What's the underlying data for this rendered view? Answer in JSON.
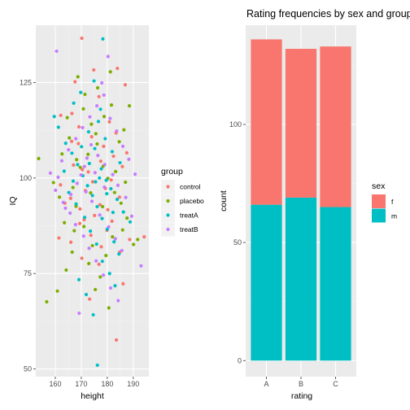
{
  "chart_data": [
    {
      "type": "scatter",
      "title": "",
      "xlabel": "height",
      "ylabel": "IQ",
      "xlim": [
        152.5,
        196
      ],
      "ylim": [
        48,
        140
      ],
      "x_ticks": [
        160,
        170,
        180,
        190
      ],
      "y_ticks": [
        50,
        75,
        100,
        125
      ],
      "grid": true,
      "legend": {
        "title": "group",
        "position": "right"
      },
      "series": [
        {
          "name": "control",
          "color": "#F8766D",
          "points": [
            [
              170.2,
              136.6
            ],
            [
              183.5,
              57.6
            ],
            [
              183.9,
              128.7
            ],
            [
              167.6,
              125.2
            ],
            [
              186.9,
              124.4
            ],
            [
              176.8,
              121.3
            ],
            [
              162.1,
              116.4
            ],
            [
              169.1,
              113.4
            ],
            [
              166.3,
              109.6
            ],
            [
              187.5,
              106.6
            ],
            [
              177.5,
              104.4
            ],
            [
              170.4,
              102.2
            ],
            [
              172.7,
              101.6
            ],
            [
              181.5,
              99.5
            ],
            [
              162.0,
              98.2
            ],
            [
              171.6,
              96.7
            ],
            [
              184.7,
              95.0
            ],
            [
              163.7,
              93.4
            ],
            [
              175.1,
              90.2
            ],
            [
              169.4,
              88.1
            ],
            [
              179.9,
              86.3
            ],
            [
              173.7,
              85.0
            ],
            [
              166.0,
              83.2
            ],
            [
              184.8,
              80.6
            ],
            [
              170.2,
              79.0
            ],
            [
              176.8,
              77.4
            ],
            [
              186.1,
              72.3
            ],
            [
              173.2,
              68.3
            ],
            [
              166.4,
              116.9
            ],
            [
              180.8,
              114.7
            ],
            [
              174.0,
              110.8
            ],
            [
              178.6,
              108.3
            ],
            [
              182.4,
              105.7
            ],
            [
              167.0,
              103.4
            ],
            [
              174.4,
              99.0
            ],
            [
              179.3,
              97.3
            ],
            [
              165.9,
              94.7
            ],
            [
              180.2,
              91.7
            ],
            [
              171.1,
              89.1
            ],
            [
              161.4,
              84.3
            ],
            [
              181.8,
              88.7
            ],
            [
              188.6,
              83.9
            ],
            [
              194.2,
              84.6
            ],
            [
              177.2,
              93.0
            ],
            [
              168.9,
              109.0
            ],
            [
              183.4,
              111.8
            ],
            [
              185.8,
              103.0
            ],
            [
              174.8,
              128.3
            ],
            [
              169.5,
              91.9
            ],
            [
              177.7,
              82.0
            ]
          ]
        },
        {
          "name": "placebo",
          "color": "#7CAE00",
          "points": [
            [
              153.6,
              105.1
            ],
            [
              156.7,
              67.6
            ],
            [
              160.8,
              70.4
            ],
            [
              164.2,
              75.9
            ],
            [
              166.5,
              80.6
            ],
            [
              168.7,
              126.5
            ],
            [
              171.4,
              121.9
            ],
            [
              173.9,
              114.1
            ],
            [
              176.1,
              108.9
            ],
            [
              178.4,
              103.1
            ],
            [
              180.2,
              99.9
            ],
            [
              182.8,
              96.2
            ],
            [
              185.3,
              93.4
            ],
            [
              187.6,
              89.5
            ],
            [
              190.1,
              82.6
            ],
            [
              163.5,
              88.3
            ],
            [
              166.8,
              97.5
            ],
            [
              169.6,
              102.8
            ],
            [
              172.6,
              106.2
            ],
            [
              175.6,
              111.6
            ],
            [
              178.8,
              116.1
            ],
            [
              181.6,
              119.1
            ],
            [
              184.6,
              109.5
            ],
            [
              188.5,
              118.9
            ],
            [
              191.7,
              83.9
            ],
            [
              161.6,
              95.0
            ],
            [
              165.4,
              110.5
            ],
            [
              168.0,
              92.6
            ],
            [
              171.0,
              87.3
            ],
            [
              174.3,
              82.3
            ],
            [
              177.3,
              74.1
            ],
            [
              179.5,
              79.7
            ],
            [
              182.0,
              84.6
            ],
            [
              185.9,
              86.4
            ],
            [
              162.6,
              106.3
            ],
            [
              168.2,
              104.8
            ],
            [
              173.6,
              96.1
            ],
            [
              178.2,
              92.5
            ],
            [
              183.2,
              101.7
            ],
            [
              187.0,
              98.9
            ],
            [
              159.3,
              98.8
            ],
            [
              164.6,
              115.8
            ],
            [
              170.8,
              118.1
            ],
            [
              176.3,
              123.6
            ],
            [
              181.2,
              127.8
            ],
            [
              186.4,
              112.6
            ],
            [
              167.3,
              86.2
            ],
            [
              172.9,
              77.6
            ],
            [
              175.4,
              70.8
            ],
            [
              180.6,
              66.0
            ]
          ]
        },
        {
          "name": "treatA",
          "color": "#00BFC4",
          "points": [
            [
              176.2,
              51.0
            ],
            [
              178.3,
              136.4
            ],
            [
              159.6,
              116.1
            ],
            [
              161.2,
              113.3
            ],
            [
              164.0,
              109.1
            ],
            [
              166.4,
              106.5
            ],
            [
              168.6,
              103.5
            ],
            [
              170.6,
              100.6
            ],
            [
              172.4,
              98.0
            ],
            [
              174.3,
              95.4
            ],
            [
              176.1,
              92.5
            ],
            [
              178.0,
              89.4
            ],
            [
              180.0,
              86.6
            ],
            [
              182.6,
              83.3
            ],
            [
              184.5,
              80.1
            ],
            [
              167.1,
              119.6
            ],
            [
              169.8,
              122.4
            ],
            [
              172.8,
              112.1
            ],
            [
              175.2,
              107.7
            ],
            [
              177.7,
              102.4
            ],
            [
              179.6,
              99.4
            ],
            [
              181.4,
              97.2
            ],
            [
              183.8,
              94.4
            ],
            [
              186.2,
              91.1
            ],
            [
              188.8,
              88.5
            ],
            [
              165.2,
              96.2
            ],
            [
              168.0,
              93.2
            ],
            [
              171.3,
              89.7
            ],
            [
              173.5,
              86.1
            ],
            [
              175.9,
              82.7
            ],
            [
              178.1,
              78.2
            ],
            [
              180.9,
              75.0
            ],
            [
              183.0,
              71.8
            ],
            [
              174.6,
              64.2
            ],
            [
              171.9,
              69.5
            ],
            [
              169.1,
              73.4
            ],
            [
              177.4,
              118.0
            ],
            [
              174.9,
              125.4
            ],
            [
              176.6,
              114.8
            ],
            [
              179.2,
              110.3
            ],
            [
              181.9,
              106.9
            ],
            [
              184.9,
              104.0
            ],
            [
              163.4,
              101.8
            ],
            [
              166.9,
              99.2
            ],
            [
              173.1,
              103.8
            ],
            [
              170.1,
              108.2
            ],
            [
              179.8,
              95.9
            ],
            [
              177.0,
              100.0
            ],
            [
              175.5,
              99.0
            ],
            [
              182.2,
              91.0
            ]
          ]
        },
        {
          "name": "treatB",
          "color": "#C77CFF",
          "points": [
            [
              160.5,
              133.2
            ],
            [
              169.2,
              64.6
            ],
            [
              177.9,
              124.9
            ],
            [
              180.3,
              131.8
            ],
            [
              158.1,
              101.3
            ],
            [
              160.1,
              96.8
            ],
            [
              163.1,
              93.6
            ],
            [
              165.7,
              90.8
            ],
            [
              167.8,
              87.8
            ],
            [
              170.9,
              84.8
            ],
            [
              173.0,
              81.6
            ],
            [
              175.7,
              78.3
            ],
            [
              178.5,
              74.6
            ],
            [
              181.3,
              71.2
            ],
            [
              184.2,
              67.9
            ],
            [
              162.5,
              104.5
            ],
            [
              165.1,
              107.4
            ],
            [
              167.9,
              110.3
            ],
            [
              170.5,
              113.2
            ],
            [
              173.3,
              116.0
            ],
            [
              176.0,
              118.9
            ],
            [
              178.7,
              121.7
            ],
            [
              181.1,
              115.6
            ],
            [
              183.6,
              112.3
            ],
            [
              186.0,
              108.3
            ],
            [
              188.3,
              104.9
            ],
            [
              190.7,
              101.0
            ],
            [
              193.0,
              77.0
            ],
            [
              189.4,
              90.0
            ],
            [
              187.1,
              94.9
            ],
            [
              184.1,
              98.1
            ],
            [
              182.1,
              100.9
            ],
            [
              179.0,
              103.5
            ],
            [
              176.4,
              105.9
            ],
            [
              173.8,
              108.7
            ],
            [
              171.2,
              103.0
            ],
            [
              168.4,
              98.6
            ],
            [
              166.0,
              95.7
            ],
            [
              163.9,
              92.1
            ],
            [
              161.1,
              100.2
            ],
            [
              174.1,
              93.9
            ],
            [
              177.1,
              90.3
            ],
            [
              180.5,
              87.2
            ],
            [
              183.1,
              84.1
            ],
            [
              185.6,
              81.0
            ],
            [
              171.8,
              96.4
            ],
            [
              169.9,
              100.8
            ],
            [
              175.3,
              101.4
            ],
            [
              172.2,
              105.2
            ],
            [
              178.9,
              97.6
            ]
          ]
        }
      ]
    },
    {
      "type": "bar",
      "stacked": true,
      "title": "Rating frequencies by sex and group",
      "xlabel": "rating",
      "ylabel": "count",
      "categories": [
        "A",
        "B",
        "C"
      ],
      "ylim": [
        -6.8,
        142
      ],
      "y_ticks": [
        0,
        50,
        100
      ],
      "grid": true,
      "legend": {
        "title": "sex",
        "position": "right"
      },
      "series": [
        {
          "name": "m",
          "color": "#00BFC4",
          "values": [
            66,
            69,
            65
          ]
        },
        {
          "name": "f",
          "color": "#F8766D",
          "values": [
            70,
            63,
            68
          ]
        }
      ]
    }
  ]
}
